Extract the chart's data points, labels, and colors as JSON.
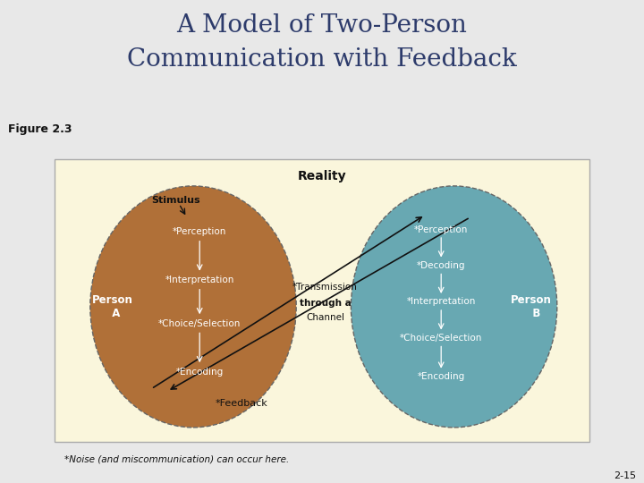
{
  "title_line1": "A Model of Two-Person",
  "title_line2": "Communication with Feedback",
  "title_bg": "#c8cc8e",
  "title_color": "#2d3b6b",
  "title_fontsize": 20,
  "figure_bg": "#e8e8e8",
  "diagram_bg": "#faf6dc",
  "figure_label": "Figure 2.3",
  "figure_label_color": "#111111",
  "page_num": "2-15",
  "reality_label": "Reality",
  "stimulus_label": "Stimulus",
  "person_a_label": "Person\n  A",
  "person_b_label": "Person\n   B",
  "transmission_label1": "*Transmission",
  "transmission_label2": "through a",
  "transmission_label3": "Channel",
  "feedback_label": "*Feedback",
  "noise_label": "*Noise (and miscommunication) can occur here.",
  "ellipse_a_color": "#b07038",
  "ellipse_b_color": "#68a8b2",
  "ellipse_edge_color": "#666666",
  "arrow_color": "#111111",
  "text_white": "#ffffff",
  "text_dark": "#111111",
  "separator_color": "#8899aa",
  "person_a_items": [
    "*Perception",
    "*Interpretation",
    "*Choice/Selection",
    "*Encoding"
  ],
  "person_b_items": [
    "*Perception",
    "*Decoding",
    "*Interpretation",
    "*Choice/Selection",
    "*Encoding"
  ]
}
